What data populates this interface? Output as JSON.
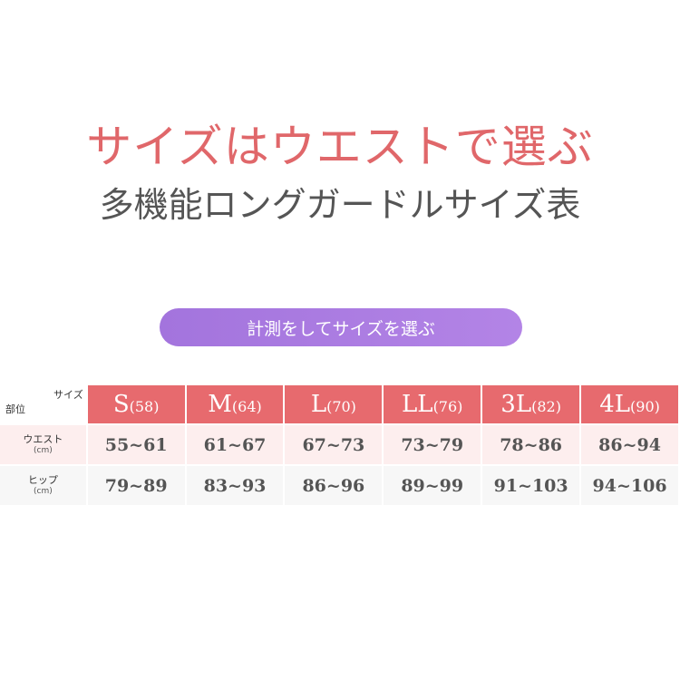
{
  "title": "サイズはウエストで選ぶ",
  "subtitle": "多機能ロングガードルサイズ表",
  "button": "計測をしてサイズを選ぶ",
  "colors": {
    "title": "#e0676a",
    "header": "#e76a6e",
    "button": "#a97ae0"
  },
  "table": {
    "corner_top": "サイズ",
    "corner_bottom": "部位",
    "sizes": [
      {
        "l": "S",
        "n": "(58)"
      },
      {
        "l": "M",
        "n": "(64)"
      },
      {
        "l": "L",
        "n": "(70)"
      },
      {
        "l": "LL",
        "n": "(76)"
      },
      {
        "l": "3L",
        "n": "(82)"
      },
      {
        "l": "4L",
        "n": "(90)"
      }
    ],
    "rows": [
      {
        "label": "ウエスト",
        "unit": "(cm)",
        "values": [
          "55~61",
          "61~67",
          "67~73",
          "73~79",
          "78~86",
          "86~94"
        ]
      },
      {
        "label": "ヒップ",
        "unit": "(cm)",
        "values": [
          "79~89",
          "83~93",
          "86~96",
          "89~99",
          "91~103",
          "94~106"
        ]
      }
    ]
  }
}
